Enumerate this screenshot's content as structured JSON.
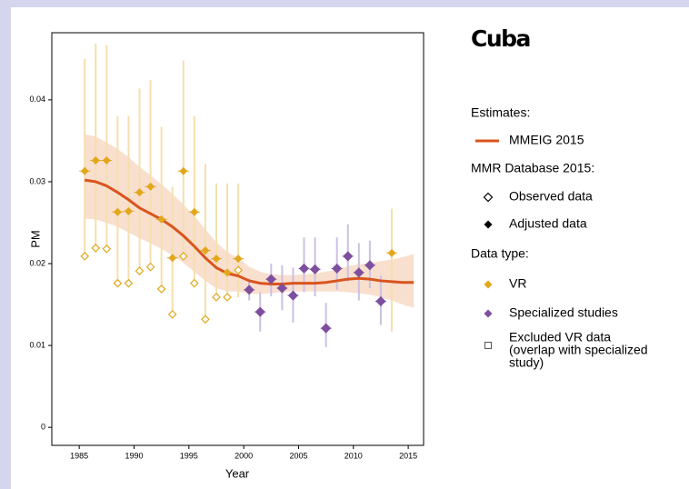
{
  "chart_data": {
    "type": "line",
    "title": "Cuba",
    "x_label": "Year",
    "y_label": "PM",
    "xlim": [
      1982.5,
      2016.4
    ],
    "ylim": [
      -0.0022,
      0.0482
    ],
    "xticks": [
      1985,
      1990,
      1995,
      2000,
      2005,
      2010,
      2015
    ],
    "yticks": [
      0,
      0.01,
      0.02,
      0.03,
      0.04
    ],
    "legend_titles": [
      "Estimates:",
      "MMR Database 2015:",
      "Data type:"
    ],
    "marker_labels": {
      "observed": "Observed data",
      "adjusted": "Adjusted data"
    },
    "excluded_label": [
      "Excluded VR data",
      "(overlap with specialized",
      "study)"
    ],
    "series": [
      {
        "name": "MMEIG 2015",
        "color": "#d9541e",
        "band_color": "#f7d9c6",
        "x": [
          1985.5,
          1986.5,
          1987.5,
          1988.5,
          1989.5,
          1990.5,
          1991.5,
          1992.5,
          1993.5,
          1994.5,
          1995.5,
          1996.5,
          1997.5,
          1998.5,
          1999.5,
          2000.5,
          2001.5,
          2002.5,
          2003.5,
          2004.5,
          2005.5,
          2006.5,
          2007.5,
          2008.5,
          2009.5,
          2010.5,
          2011.5,
          2012.5,
          2013.5,
          2014.5,
          2015.5
        ],
        "values": [
          0.0302,
          0.03,
          0.0295,
          0.0287,
          0.0278,
          0.0268,
          0.0261,
          0.0254,
          0.0245,
          0.0234,
          0.0221,
          0.0207,
          0.0195,
          0.0188,
          0.0185,
          0.0179,
          0.0176,
          0.0175,
          0.0175,
          0.0176,
          0.0176,
          0.0176,
          0.0177,
          0.0179,
          0.0181,
          0.0182,
          0.0181,
          0.0179,
          0.0178,
          0.0177,
          0.0177
        ],
        "lower": [
          0.0255,
          0.0254,
          0.025,
          0.0245,
          0.0238,
          0.0231,
          0.0225,
          0.0218,
          0.021,
          0.0201,
          0.019,
          0.0179,
          0.017,
          0.0166,
          0.0166,
          0.0163,
          0.0163,
          0.0164,
          0.0165,
          0.0166,
          0.0166,
          0.0166,
          0.0166,
          0.0166,
          0.0165,
          0.0164,
          0.0162,
          0.0159,
          0.0155,
          0.015,
          0.0146
        ],
        "upper": [
          0.0358,
          0.0355,
          0.0348,
          0.034,
          0.033,
          0.0318,
          0.0308,
          0.0297,
          0.0285,
          0.0272,
          0.0258,
          0.0242,
          0.0226,
          0.0214,
          0.0207,
          0.0196,
          0.019,
          0.0187,
          0.0186,
          0.0186,
          0.0187,
          0.0188,
          0.019,
          0.0193,
          0.0197,
          0.0199,
          0.0201,
          0.0203,
          0.0205,
          0.0208,
          0.0212
        ]
      },
      {
        "name": "VR",
        "color": "#e2a71b",
        "bar_color": "#f6dfae",
        "x": [
          1985.5,
          1986.5,
          1987.5,
          1988.5,
          1989.5,
          1990.5,
          1991.5,
          1992.5,
          1993.5,
          1994.5,
          1995.5,
          1996.5,
          1997.5,
          1998.5,
          1999.5,
          2013.5
        ],
        "adjusted": [
          0.0313,
          0.0326,
          0.0326,
          0.0263,
          0.0264,
          0.0287,
          0.0294,
          0.0254,
          0.0207,
          0.0313,
          0.0263,
          0.0216,
          0.0206,
          0.0189,
          0.0206,
          0.0213
        ],
        "observed": [
          0.0209,
          0.0219,
          0.0218,
          0.0176,
          0.0176,
          0.0191,
          0.0196,
          0.0169,
          0.0138,
          0.0209,
          0.0176,
          0.0132,
          0.0159,
          0.0159,
          0.0192,
          null
        ],
        "lower": [
          0.0209,
          0.0219,
          0.0218,
          0.0176,
          0.0176,
          0.0191,
          0.0196,
          0.0169,
          0.0138,
          0.0209,
          0.0176,
          0.0132,
          0.0159,
          0.0159,
          0.0159,
          0.0117
        ],
        "upper": [
          0.045,
          0.0469,
          0.0467,
          0.038,
          0.038,
          0.0414,
          0.0424,
          0.0367,
          0.0294,
          0.0448,
          0.038,
          0.0322,
          0.0298,
          0.0298,
          0.0298,
          0.0267
        ]
      },
      {
        "name": "Specialized studies",
        "color": "#7d4f9e",
        "bar_color": "#cbc1e2",
        "x": [
          2000.5,
          2001.5,
          2002.5,
          2003.5,
          2004.5,
          2005.5,
          2006.5,
          2007.5,
          2008.5,
          2009.5,
          2010.5,
          2011.5,
          2012.5
        ],
        "values": [
          0.0168,
          0.0141,
          0.0181,
          0.017,
          0.0161,
          0.0194,
          0.0193,
          0.0121,
          0.0194,
          0.0209,
          0.0189,
          0.0198,
          0.0154
        ],
        "lower": [
          0.0155,
          0.0117,
          0.016,
          0.0143,
          0.0128,
          0.0165,
          0.016,
          0.0098,
          0.0168,
          0.0178,
          0.0155,
          0.017,
          0.0125
        ],
        "upper": [
          0.0182,
          0.0165,
          0.02,
          0.0198,
          0.0195,
          0.0232,
          0.0232,
          0.0152,
          0.0232,
          0.0248,
          0.0225,
          0.0228,
          0.0185
        ]
      }
    ]
  }
}
